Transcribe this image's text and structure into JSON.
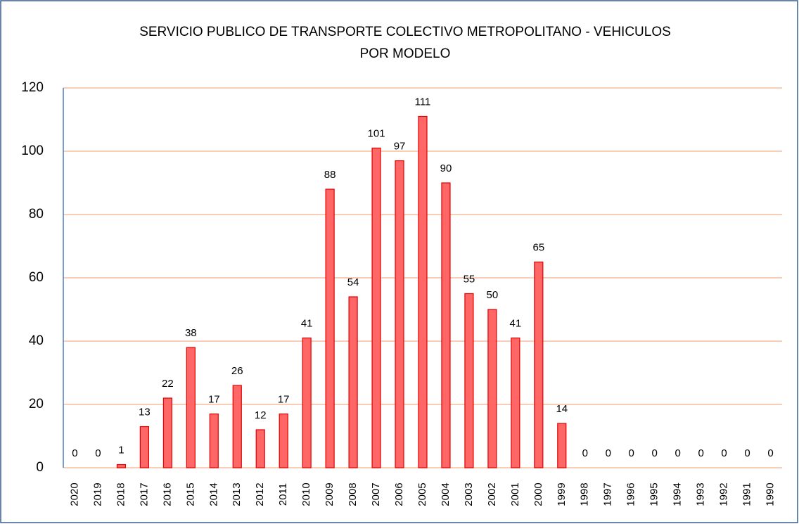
{
  "chart_data": {
    "type": "bar",
    "title": [
      "SERVICIO PUBLICO DE TRANSPORTE COLECTIVO METROPOLITANO - VEHICULOS",
      "POR MODELO"
    ],
    "categories": [
      "2020",
      "2019",
      "2018",
      "2017",
      "2016",
      "2015",
      "2014",
      "2013",
      "2012",
      "2011",
      "2010",
      "2009",
      "2008",
      "2007",
      "2006",
      "2005",
      "2004",
      "2003",
      "2002",
      "2001",
      "2000",
      "1999",
      "1998",
      "1997",
      "1996",
      "1995",
      "1994",
      "1993",
      "1992",
      "1991",
      "1990"
    ],
    "values": [
      0,
      0,
      1,
      13,
      22,
      38,
      17,
      26,
      12,
      17,
      41,
      88,
      54,
      101,
      97,
      111,
      90,
      55,
      50,
      41,
      65,
      14,
      0,
      0,
      0,
      0,
      0,
      0,
      0,
      0,
      0
    ],
    "color": "#ff6666",
    "ylim": [
      0,
      120
    ],
    "yticks": [
      0,
      20,
      40,
      60,
      80,
      100,
      120
    ],
    "grid": true
  }
}
